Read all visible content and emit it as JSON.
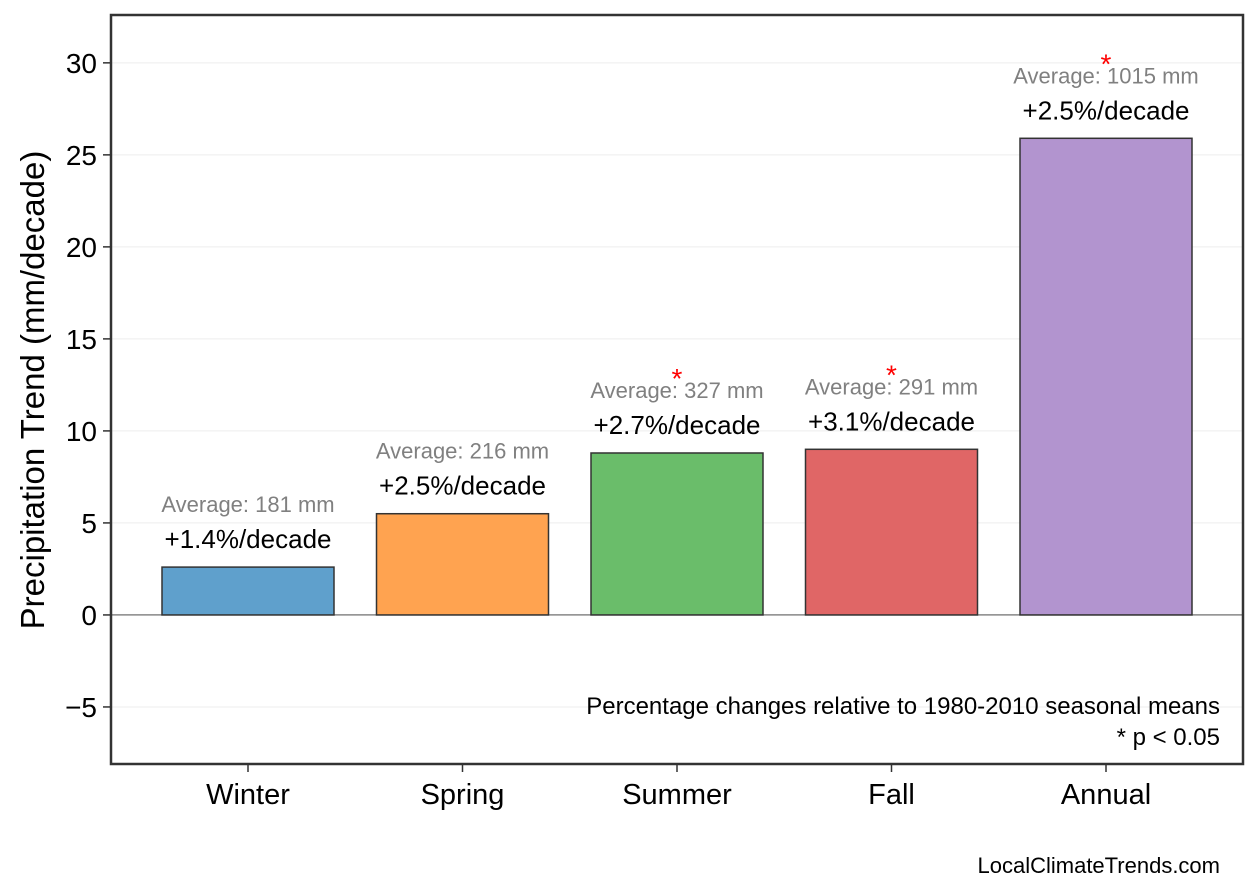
{
  "chart_data": {
    "type": "bar",
    "title": "",
    "xlabel": "",
    "ylabel": "Precipitation Trend (mm/decade)",
    "ylim": [
      -8.1,
      32.6
    ],
    "yticks": [
      -5,
      0,
      5,
      10,
      15,
      20,
      25,
      30
    ],
    "ytick_labels": [
      "−5",
      "0",
      "5",
      "10",
      "15",
      "20",
      "25",
      "30"
    ],
    "grid": true,
    "categories": [
      "Winter",
      "Spring",
      "Summer",
      "Fall",
      "Annual"
    ],
    "values": [
      2.6,
      5.5,
      8.8,
      9.0,
      25.9
    ],
    "colors": [
      "#5fa0cc",
      "#ffa350",
      "#6abd6a",
      "#e06666",
      "#b294cf"
    ],
    "percent_labels": [
      "+1.4%/decade",
      "+2.5%/decade",
      "+2.7%/decade",
      "+3.1%/decade",
      "+2.5%/decade"
    ],
    "average_labels": [
      "Average: 181 mm",
      "Average: 216 mm",
      "Average: 327 mm",
      "Average: 291 mm",
      "Average: 1015 mm"
    ],
    "significant": [
      false,
      false,
      true,
      true,
      true
    ],
    "significance_marker": "*",
    "significance_color": "#ff0000",
    "annotation": [
      "Percentage changes relative to 1980-2010 seasonal means",
      "* p < 0.05"
    ]
  },
  "source_credit": "LocalClimateTrends.com"
}
